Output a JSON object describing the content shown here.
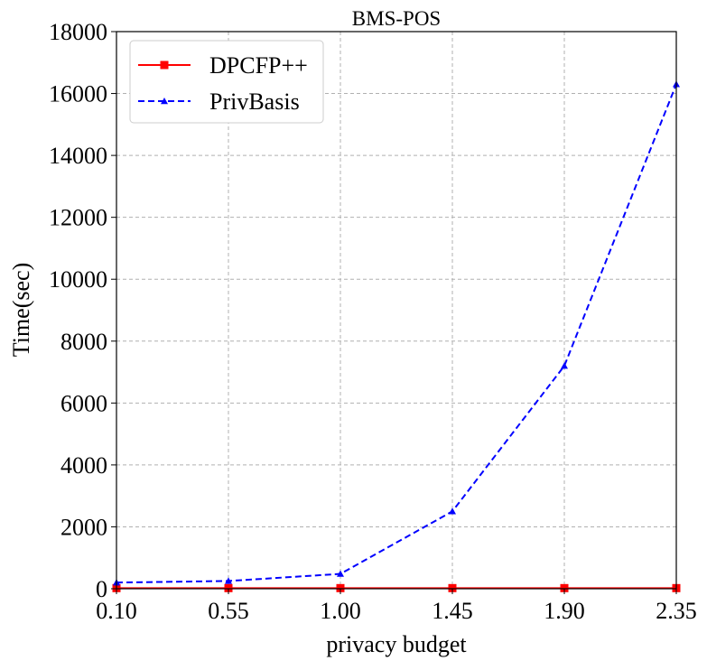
{
  "chart_data": {
    "type": "line",
    "title": "BMS-POS",
    "xlabel": "privacy budget",
    "ylabel": "Time(sec)",
    "x": [
      0.1,
      0.55,
      1.0,
      1.45,
      1.9,
      2.35
    ],
    "x_tick_labels": [
      "0.10",
      "0.55",
      "1.00",
      "1.45",
      "1.90",
      "2.35"
    ],
    "y_ticks": [
      0,
      2000,
      4000,
      6000,
      8000,
      10000,
      12000,
      14000,
      16000,
      18000
    ],
    "y_tick_labels": [
      "0",
      "2000",
      "4000",
      "6000",
      "8000",
      "10000",
      "12000",
      "14000",
      "16000",
      "18000"
    ],
    "xlim": [
      0.1,
      2.35
    ],
    "ylim": [
      0,
      18000
    ],
    "grid": true,
    "legend_position": "top-left",
    "series": [
      {
        "name": "DPCFP++",
        "values": [
          20,
          20,
          20,
          20,
          20,
          20
        ],
        "color": "#ff0000",
        "line_style": "solid",
        "marker": "square"
      },
      {
        "name": "PrivBasis",
        "values": [
          200,
          250,
          480,
          2500,
          7200,
          16300
        ],
        "color": "#0000ff",
        "line_style": "dashed",
        "marker": "triangle"
      }
    ]
  }
}
